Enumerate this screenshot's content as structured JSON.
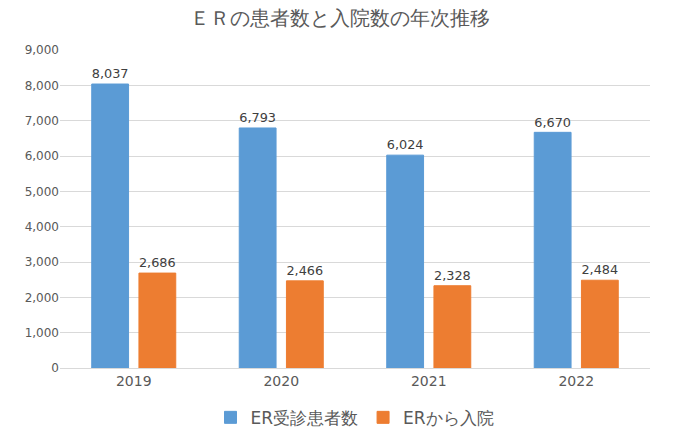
{
  "chart_data": {
    "type": "bar",
    "title": "ＥＲの患者数と入院数の年次推移",
    "categories": [
      "2019",
      "2020",
      "2021",
      "2022"
    ],
    "series": [
      {
        "name": "ER受診患者数",
        "color": "#5b9bd5",
        "values": [
          8037,
          6793,
          6024,
          6670
        ],
        "value_labels": [
          "8,037",
          "6,793",
          "6,024",
          "6,670"
        ]
      },
      {
        "name": "ERから入院",
        "color": "#ed7d31",
        "values": [
          2686,
          2466,
          2328,
          2484
        ],
        "value_labels": [
          "2,686",
          "2,466",
          "2,328",
          "2,484"
        ]
      }
    ],
    "ylim": [
      0,
      9000
    ],
    "yticks": [
      0,
      {
        "value": 1000,
        "label": "1,000"
      },
      {
        "value": 2000,
        "label": "2,000"
      },
      {
        "value": 3000,
        "label": "3,000"
      },
      {
        "value": 4000,
        "label": "4,000"
      },
      {
        "value": 5000,
        "label": "5,000"
      },
      {
        "value": 6000,
        "label": "6,000"
      },
      {
        "value": 7000,
        "label": "7,000"
      },
      {
        "value": 8000,
        "label": "8,000"
      },
      {
        "value": 9000,
        "label": "9,000"
      }
    ],
    "grid": true,
    "legend": "bottom",
    "data_labels": true
  }
}
